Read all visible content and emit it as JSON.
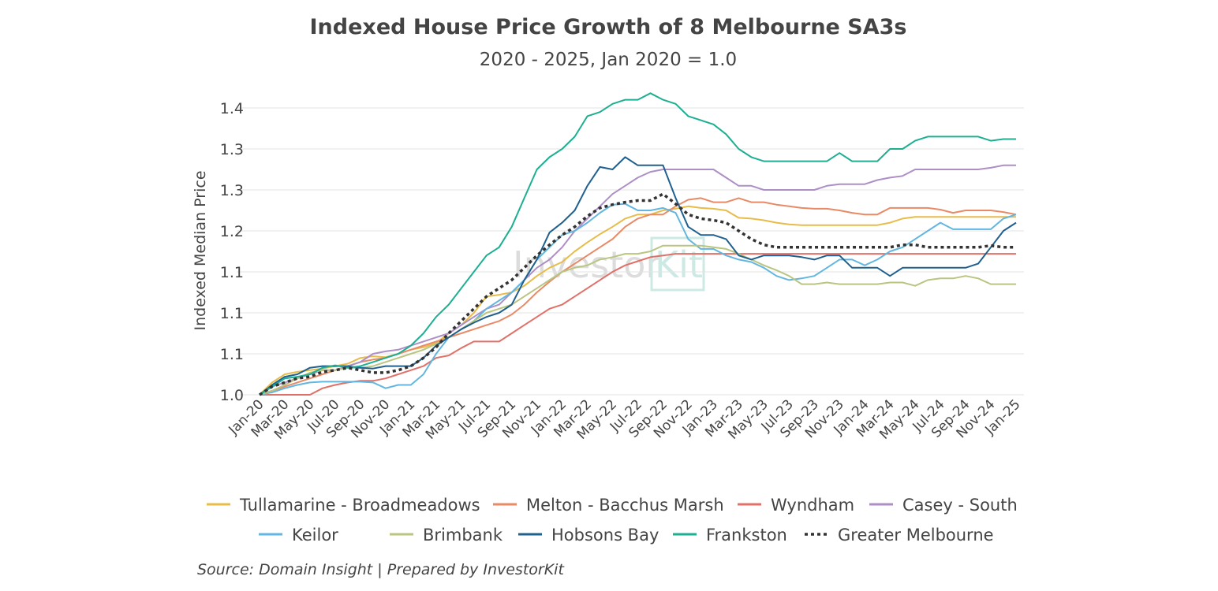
{
  "chart_data": {
    "type": "line",
    "title": "Indexed House Price Growth of 8 Melbourne SA3s",
    "subtitle": "2020 - 2025, Jan 2020 = 1.0",
    "ylabel": "Indexed Median Price",
    "xlabel": "",
    "ylim": [
      1.0,
      1.35
    ],
    "yticks": [
      1.0,
      1.05,
      1.1,
      1.15,
      1.2,
      1.25,
      1.3,
      1.35
    ],
    "ytick_labels": [
      "1.0",
      "1.1",
      "1.1",
      "1.1",
      "1.2",
      "1.3",
      "1.3",
      "1.4"
    ],
    "grid": true,
    "legend_position": "bottom",
    "x": [
      "Jan-20",
      "Feb-20",
      "Mar-20",
      "Apr-20",
      "May-20",
      "Jun-20",
      "Jul-20",
      "Aug-20",
      "Sep-20",
      "Oct-20",
      "Nov-20",
      "Dec-20",
      "Jan-21",
      "Feb-21",
      "Mar-21",
      "Apr-21",
      "May-21",
      "Jun-21",
      "Jul-21",
      "Aug-21",
      "Sep-21",
      "Oct-21",
      "Nov-21",
      "Dec-21",
      "Jan-22",
      "Feb-22",
      "Mar-22",
      "Apr-22",
      "May-22",
      "Jun-22",
      "Jul-22",
      "Aug-22",
      "Sep-22",
      "Oct-22",
      "Nov-22",
      "Dec-22",
      "Jan-23",
      "Feb-23",
      "Mar-23",
      "Apr-23",
      "May-23",
      "Jun-23",
      "Jul-23",
      "Aug-23",
      "Sep-23",
      "Oct-23",
      "Nov-23",
      "Dec-23",
      "Jan-24",
      "Feb-24",
      "Mar-24",
      "Apr-24",
      "May-24",
      "Jun-24",
      "Jul-24",
      "Aug-24",
      "Sep-24",
      "Oct-24",
      "Nov-24",
      "Dec-24",
      "Jan-25"
    ],
    "x_tick_labels": [
      "Jan-20",
      "Mar-20",
      "May-20",
      "Jul-20",
      "Sep-20",
      "Nov-20",
      "Jan-21",
      "Mar-21",
      "May-21",
      "Jul-21",
      "Sep-21",
      "Nov-21",
      "Jan-22",
      "Mar-22",
      "May-22",
      "Jul-22",
      "Sep-22",
      "Nov-22",
      "Jan-23",
      "Mar-23",
      "May-23",
      "Jul-23",
      "Sep-23",
      "Nov-23",
      "Jan-24",
      "Mar-24",
      "May-24",
      "Jul-24",
      "Sep-24",
      "Nov-24",
      "Jan-25"
    ],
    "series": [
      {
        "name": "Tullamarine - Broadmeadows",
        "color": "#e8bc4a",
        "dash": false,
        "values": [
          1.0,
          1.015,
          1.025,
          1.028,
          1.03,
          1.032,
          1.035,
          1.038,
          1.045,
          1.047,
          1.046,
          1.05,
          1.055,
          1.058,
          1.063,
          1.075,
          1.085,
          1.1,
          1.12,
          1.122,
          1.125,
          1.133,
          1.145,
          1.155,
          1.162,
          1.175,
          1.186,
          1.196,
          1.205,
          1.215,
          1.22,
          1.22,
          1.225,
          1.227,
          1.23,
          1.228,
          1.227,
          1.225,
          1.216,
          1.215,
          1.213,
          1.21,
          1.208,
          1.207,
          1.207,
          1.207,
          1.207,
          1.207,
          1.207,
          1.207,
          1.21,
          1.215,
          1.217,
          1.217,
          1.217,
          1.217,
          1.217,
          1.217,
          1.217,
          1.217,
          1.217
        ]
      },
      {
        "name": "Melton - Bacchus Marsh",
        "color": "#e88a66",
        "dash": false,
        "values": [
          1.0,
          1.005,
          1.01,
          1.015,
          1.02,
          1.025,
          1.03,
          1.035,
          1.04,
          1.043,
          1.045,
          1.05,
          1.055,
          1.06,
          1.065,
          1.07,
          1.075,
          1.08,
          1.085,
          1.09,
          1.098,
          1.11,
          1.125,
          1.138,
          1.15,
          1.16,
          1.17,
          1.18,
          1.19,
          1.205,
          1.215,
          1.22,
          1.22,
          1.23,
          1.238,
          1.24,
          1.235,
          1.235,
          1.24,
          1.235,
          1.235,
          1.232,
          1.23,
          1.228,
          1.227,
          1.227,
          1.225,
          1.222,
          1.22,
          1.22,
          1.228,
          1.228,
          1.228,
          1.228,
          1.226,
          1.222,
          1.225,
          1.225,
          1.225,
          1.223,
          1.22
        ]
      },
      {
        "name": "Wyndham",
        "color": "#e07068",
        "dash": false,
        "values": [
          1.0,
          1.0,
          1.0,
          1.0,
          1.0,
          1.008,
          1.012,
          1.015,
          1.017,
          1.017,
          1.02,
          1.025,
          1.03,
          1.035,
          1.045,
          1.048,
          1.057,
          1.065,
          1.065,
          1.065,
          1.075,
          1.085,
          1.095,
          1.105,
          1.11,
          1.12,
          1.13,
          1.14,
          1.15,
          1.158,
          1.163,
          1.168,
          1.17,
          1.172,
          1.172,
          1.172,
          1.172,
          1.172,
          1.172,
          1.172,
          1.172,
          1.172,
          1.172,
          1.172,
          1.172,
          1.172,
          1.172,
          1.172,
          1.172,
          1.172,
          1.172,
          1.172,
          1.172,
          1.172,
          1.172,
          1.172,
          1.172,
          1.172,
          1.172,
          1.172,
          1.172
        ]
      },
      {
        "name": "Casey - South",
        "color": "#ad8fc6",
        "dash": false,
        "values": [
          1.0,
          1.01,
          1.015,
          1.02,
          1.025,
          1.03,
          1.03,
          1.035,
          1.04,
          1.05,
          1.053,
          1.055,
          1.06,
          1.065,
          1.07,
          1.075,
          1.085,
          1.095,
          1.105,
          1.11,
          1.125,
          1.14,
          1.155,
          1.165,
          1.18,
          1.2,
          1.215,
          1.23,
          1.245,
          1.255,
          1.265,
          1.272,
          1.275,
          1.275,
          1.275,
          1.275,
          1.275,
          1.265,
          1.255,
          1.255,
          1.25,
          1.25,
          1.25,
          1.25,
          1.25,
          1.255,
          1.257,
          1.257,
          1.257,
          1.262,
          1.265,
          1.267,
          1.275,
          1.275,
          1.275,
          1.275,
          1.275,
          1.275,
          1.277,
          1.28,
          1.28
        ]
      },
      {
        "name": "Keilor",
        "color": "#62b6df",
        "dash": false,
        "values": [
          1.0,
          1.003,
          1.008,
          1.012,
          1.015,
          1.016,
          1.016,
          1.016,
          1.016,
          1.015,
          1.008,
          1.012,
          1.012,
          1.025,
          1.05,
          1.07,
          1.08,
          1.09,
          1.105,
          1.115,
          1.125,
          1.14,
          1.165,
          1.18,
          1.195,
          1.2,
          1.21,
          1.222,
          1.232,
          1.233,
          1.225,
          1.225,
          1.228,
          1.222,
          1.19,
          1.178,
          1.178,
          1.17,
          1.165,
          1.162,
          1.155,
          1.145,
          1.14,
          1.142,
          1.145,
          1.155,
          1.165,
          1.165,
          1.158,
          1.165,
          1.175,
          1.18,
          1.19,
          1.2,
          1.21,
          1.202,
          1.202,
          1.202,
          1.202,
          1.215,
          1.22
        ]
      },
      {
        "name": "Brimbank",
        "color": "#b9c581",
        "dash": false,
        "values": [
          1.0,
          1.005,
          1.012,
          1.02,
          1.027,
          1.03,
          1.03,
          1.033,
          1.033,
          1.035,
          1.04,
          1.045,
          1.05,
          1.055,
          1.062,
          1.07,
          1.08,
          1.09,
          1.1,
          1.105,
          1.11,
          1.12,
          1.13,
          1.14,
          1.15,
          1.155,
          1.158,
          1.165,
          1.168,
          1.172,
          1.172,
          1.175,
          1.182,
          1.182,
          1.182,
          1.182,
          1.18,
          1.178,
          1.172,
          1.165,
          1.158,
          1.152,
          1.145,
          1.135,
          1.135,
          1.137,
          1.135,
          1.135,
          1.135,
          1.135,
          1.137,
          1.137,
          1.133,
          1.14,
          1.142,
          1.142,
          1.145,
          1.142,
          1.135,
          1.135,
          1.135
        ]
      },
      {
        "name": "Hobsons Bay",
        "color": "#20608e",
        "dash": false,
        "values": [
          1.0,
          1.012,
          1.022,
          1.025,
          1.033,
          1.035,
          1.035,
          1.035,
          1.033,
          1.032,
          1.035,
          1.035,
          1.035,
          1.045,
          1.06,
          1.07,
          1.08,
          1.088,
          1.095,
          1.1,
          1.11,
          1.14,
          1.165,
          1.198,
          1.21,
          1.225,
          1.255,
          1.278,
          1.275,
          1.29,
          1.28,
          1.28,
          1.28,
          1.24,
          1.205,
          1.195,
          1.195,
          1.19,
          1.17,
          1.165,
          1.17,
          1.17,
          1.17,
          1.168,
          1.165,
          1.17,
          1.17,
          1.155,
          1.155,
          1.155,
          1.145,
          1.155,
          1.155,
          1.155,
          1.155,
          1.155,
          1.155,
          1.16,
          1.18,
          1.2,
          1.21
        ]
      },
      {
        "name": "Frankston",
        "color": "#1caf91",
        "dash": false,
        "values": [
          1.0,
          1.01,
          1.02,
          1.022,
          1.025,
          1.033,
          1.036,
          1.033,
          1.035,
          1.04,
          1.045,
          1.05,
          1.06,
          1.075,
          1.095,
          1.11,
          1.13,
          1.15,
          1.17,
          1.18,
          1.205,
          1.24,
          1.275,
          1.29,
          1.3,
          1.315,
          1.34,
          1.345,
          1.355,
          1.36,
          1.36,
          1.368,
          1.36,
          1.355,
          1.34,
          1.335,
          1.33,
          1.318,
          1.3,
          1.29,
          1.285,
          1.285,
          1.285,
          1.285,
          1.285,
          1.285,
          1.295,
          1.285,
          1.285,
          1.285,
          1.3,
          1.3,
          1.31,
          1.315,
          1.315,
          1.315,
          1.315,
          1.315,
          1.31,
          1.312,
          1.312
        ]
      },
      {
        "name": "Greater Melbourne",
        "color": "#333333",
        "dash": true,
        "values": [
          1.0,
          1.01,
          1.015,
          1.02,
          1.022,
          1.028,
          1.03,
          1.033,
          1.03,
          1.027,
          1.027,
          1.03,
          1.035,
          1.045,
          1.058,
          1.075,
          1.09,
          1.105,
          1.12,
          1.13,
          1.14,
          1.155,
          1.17,
          1.183,
          1.195,
          1.205,
          1.218,
          1.228,
          1.232,
          1.235,
          1.237,
          1.237,
          1.245,
          1.233,
          1.22,
          1.215,
          1.213,
          1.21,
          1.2,
          1.19,
          1.183,
          1.18,
          1.18,
          1.18,
          1.18,
          1.18,
          1.18,
          1.18,
          1.18,
          1.18,
          1.18,
          1.183,
          1.183,
          1.18,
          1.18,
          1.18,
          1.18,
          1.18,
          1.182,
          1.18,
          1.18
        ]
      }
    ],
    "source": "Source: Domain Insight | Prepared by InvestorKit"
  },
  "watermark": {
    "part1": "Investor",
    "part2": "Kit"
  }
}
